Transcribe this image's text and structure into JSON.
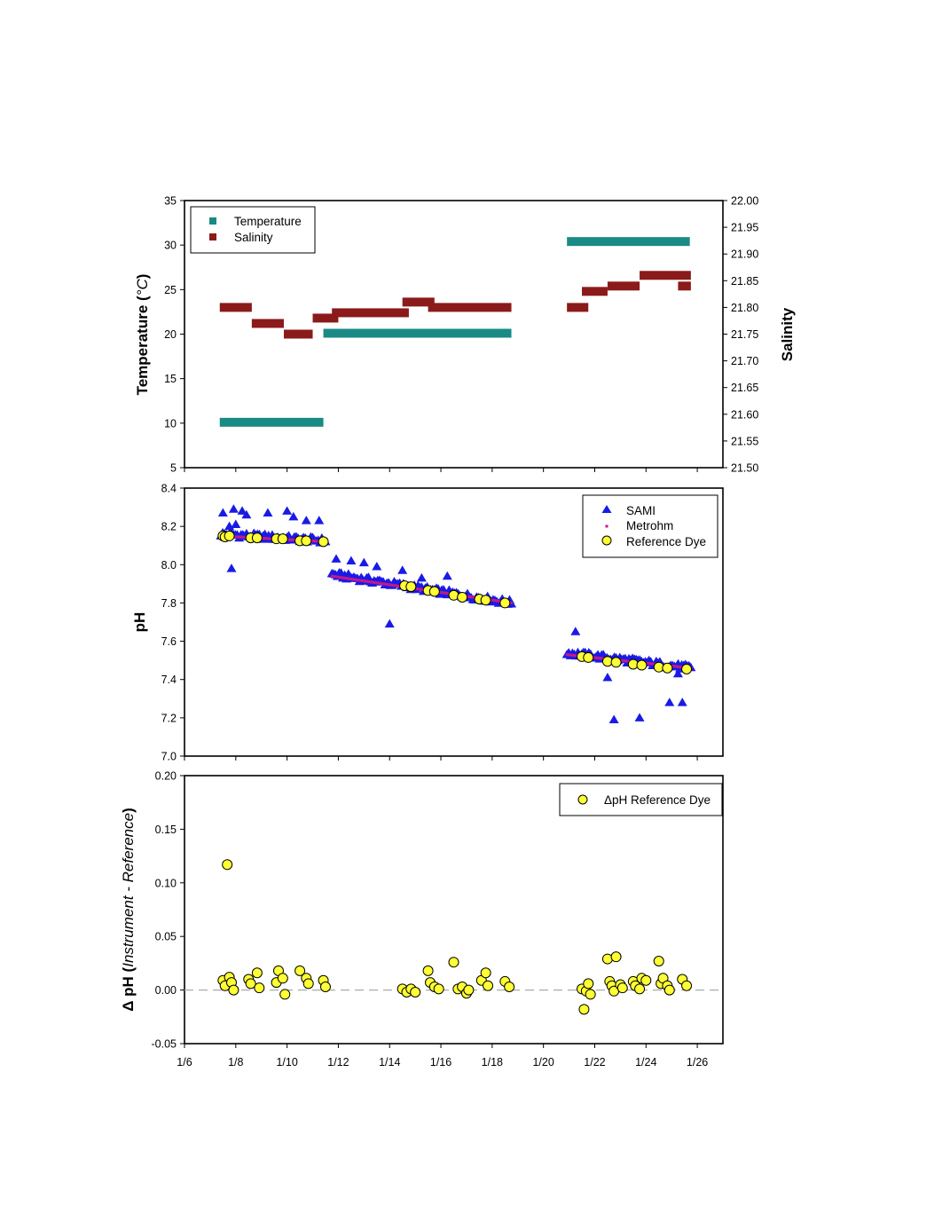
{
  "chart_data": [
    {
      "type": "scatter",
      "panel": "top",
      "ylabel": "Temperature (°C)",
      "ylabel_parts": [
        "Temperature (",
        "°C",
        ")"
      ],
      "y2label": "Salinity",
      "ylim": [
        5,
        35
      ],
      "yticks": [
        5,
        10,
        15,
        20,
        25,
        30,
        35
      ],
      "y2lim": [
        21.5,
        22.0
      ],
      "y2ticks": [
        "21.50",
        "21.55",
        "21.60",
        "21.65",
        "21.70",
        "21.75",
        "21.80",
        "21.85",
        "21.90",
        "21.95",
        "22.00"
      ],
      "xlim": [
        "1/6",
        "1/27"
      ],
      "legend_position": "top-left",
      "colors": {
        "Temperature": "#1a8a85",
        "Salinity": "#8b1a1a"
      },
      "series": [
        {
          "name": "Temperature",
          "axis": "left",
          "segments": [
            {
              "x_start": "1/7 09:00",
              "x_end": "1/11 10:00",
              "y": 10.1
            },
            {
              "x_start": "1/11 10:00",
              "x_end": "1/18 18:00",
              "y": 20.1
            },
            {
              "x_start": "1/20 22:00",
              "x_end": "1/25 17:00",
              "y": 30.4
            }
          ]
        },
        {
          "name": "Salinity",
          "axis": "right",
          "segments": [
            {
              "x_start": "1/7 09:00",
              "x_end": "1/8 15:00",
              "y": 21.8
            },
            {
              "x_start": "1/8 15:00",
              "x_end": "1/9 21:00",
              "y": 21.77
            },
            {
              "x_start": "1/9 21:00",
              "x_end": "1/11 00:00",
              "y": 21.75
            },
            {
              "x_start": "1/11 00:00",
              "x_end": "1/12 00:00",
              "y": 21.78
            },
            {
              "x_start": "1/11 18:00",
              "x_end": "1/14 18:00",
              "y": 21.79
            },
            {
              "x_start": "1/14 12:00",
              "x_end": "1/15 18:00",
              "y": 21.81
            },
            {
              "x_start": "1/15 12:00",
              "x_end": "1/18 18:00",
              "y": 21.8
            },
            {
              "x_start": "1/20 22:00",
              "x_end": "1/21 18:00",
              "y": 21.8
            },
            {
              "x_start": "1/21 12:00",
              "x_end": "1/22 12:00",
              "y": 21.83
            },
            {
              "x_start": "1/22 12:00",
              "x_end": "1/23 18:00",
              "y": 21.84
            },
            {
              "x_start": "1/23 18:00",
              "x_end": "1/25 18:00",
              "y": 21.86
            },
            {
              "x_start": "1/25 06:00",
              "x_end": "1/25 18:00",
              "y": 21.84
            }
          ]
        }
      ]
    },
    {
      "type": "scatter",
      "panel": "middle",
      "ylabel": "pH",
      "ylim": [
        7.0,
        8.4
      ],
      "yticks": [
        "7.0",
        "7.2",
        "7.4",
        "7.6",
        "7.8",
        "8.0",
        "8.2",
        "8.4"
      ],
      "xlim": [
        "1/6",
        "1/27"
      ],
      "legend_position": "top-right",
      "colors": {
        "SAMI": "#1a1ae6",
        "Metrohm": "#c0188f",
        "Reference Dye": "#ffff33"
      },
      "series": [
        {
          "name": "SAMI",
          "marker": "triangle",
          "trend_segments": [
            {
              "x_start": "1/7 10:00",
              "x_end": "1/11 12:00",
              "y_start": 8.16,
              "y_end": 8.125
            },
            {
              "x_start": "1/11 18:00",
              "x_end": "1/18 18:00",
              "y_start": 7.95,
              "y_end": 7.8
            },
            {
              "x_start": "1/20 22:00",
              "x_end": "1/25 18:00",
              "y_start": 7.54,
              "y_end": 7.46
            }
          ],
          "outliers": [
            {
              "x": "1/7 12:00",
              "y": 8.27
            },
            {
              "x": "1/7 22:00",
              "y": 8.29
            },
            {
              "x": "1/8 06:00",
              "y": 8.28
            },
            {
              "x": "1/8 10:00",
              "y": 8.26
            },
            {
              "x": "1/7 18:00",
              "y": 8.2
            },
            {
              "x": "1/8 00:00",
              "y": 8.21
            },
            {
              "x": "1/7 20:00",
              "y": 7.98
            },
            {
              "x": "1/9 06:00",
              "y": 8.27
            },
            {
              "x": "1/10 00:00",
              "y": 8.28
            },
            {
              "x": "1/10 06:00",
              "y": 8.25
            },
            {
              "x": "1/10 18:00",
              "y": 8.23
            },
            {
              "x": "1/11 06:00",
              "y": 8.23
            },
            {
              "x": "1/11 22:00",
              "y": 8.03
            },
            {
              "x": "1/12 12:00",
              "y": 8.02
            },
            {
              "x": "1/13 00:00",
              "y": 8.01
            },
            {
              "x": "1/13 12:00",
              "y": 7.99
            },
            {
              "x": "1/14 12:00",
              "y": 7.97
            },
            {
              "x": "1/15 06:00",
              "y": 7.93
            },
            {
              "x": "1/16 06:00",
              "y": 7.94
            },
            {
              "x": "1/14 00:00",
              "y": 7.69
            },
            {
              "x": "1/21 06:00",
              "y": 7.65
            },
            {
              "x": "1/22 12:00",
              "y": 7.41
            },
            {
              "x": "1/22 18:00",
              "y": 7.19
            },
            {
              "x": "1/23 18:00",
              "y": 7.2
            },
            {
              "x": "1/24 22:00",
              "y": 7.28
            },
            {
              "x": "1/25 10:00",
              "y": 7.28
            },
            {
              "x": "1/25 06:00",
              "y": 7.43
            }
          ]
        },
        {
          "name": "Metrohm",
          "marker": "dot",
          "trend_segments": [
            {
              "x_start": "1/7 10:00",
              "x_end": "1/11 12:00",
              "y_start": 8.15,
              "y_end": 8.12
            },
            {
              "x_start": "1/11 18:00",
              "x_end": "1/18 18:00",
              "y_start": 7.94,
              "y_end": 7.8
            },
            {
              "x_start": "1/20 22:00",
              "x_end": "1/25 18:00",
              "y_start": 7.53,
              "y_end": 7.46
            }
          ]
        },
        {
          "name": "Reference Dye",
          "marker": "circle",
          "points": [
            {
              "x": "1/7 12:00",
              "y": 8.15
            },
            {
              "x": "1/7 14:00",
              "y": 8.145
            },
            {
              "x": "1/7 18:00",
              "y": 8.15
            },
            {
              "x": "1/8 14:00",
              "y": 8.14
            },
            {
              "x": "1/8 20:00",
              "y": 8.14
            },
            {
              "x": "1/9 14:00",
              "y": 8.135
            },
            {
              "x": "1/9 20:00",
              "y": 8.135
            },
            {
              "x": "1/10 12:00",
              "y": 8.125
            },
            {
              "x": "1/10 18:00",
              "y": 8.125
            },
            {
              "x": "1/11 10:00",
              "y": 8.12
            },
            {
              "x": "1/14 14:00",
              "y": 7.89
            },
            {
              "x": "1/14 20:00",
              "y": 7.885
            },
            {
              "x": "1/15 12:00",
              "y": 7.865
            },
            {
              "x": "1/15 18:00",
              "y": 7.86
            },
            {
              "x": "1/16 12:00",
              "y": 7.84
            },
            {
              "x": "1/16 20:00",
              "y": 7.83
            },
            {
              "x": "1/17 12:00",
              "y": 7.82
            },
            {
              "x": "1/17 18:00",
              "y": 7.815
            },
            {
              "x": "1/18 12:00",
              "y": 7.8
            },
            {
              "x": "1/21 12:00",
              "y": 7.52
            },
            {
              "x": "1/21 18:00",
              "y": 7.515
            },
            {
              "x": "1/22 12:00",
              "y": 7.495
            },
            {
              "x": "1/22 20:00",
              "y": 7.49
            },
            {
              "x": "1/23 12:00",
              "y": 7.48
            },
            {
              "x": "1/23 20:00",
              "y": 7.475
            },
            {
              "x": "1/24 12:00",
              "y": 7.465
            },
            {
              "x": "1/24 20:00",
              "y": 7.46
            },
            {
              "x": "1/25 14:00",
              "y": 7.455
            }
          ]
        }
      ]
    },
    {
      "type": "scatter",
      "panel": "bottom",
      "ylabel": "Δ pH (Instrument - Reference)",
      "ylabel_parts": [
        "Δ pH (",
        "Instrument - Reference",
        ")"
      ],
      "ylim": [
        -0.05,
        0.2
      ],
      "yticks": [
        "-0.05",
        "0.00",
        "0.05",
        "0.10",
        "0.15",
        "0.20"
      ],
      "xlim": [
        "1/6",
        "1/27"
      ],
      "xticks": [
        "1/6",
        "1/8",
        "1/10",
        "1/12",
        "1/14",
        "1/16",
        "1/18",
        "1/20",
        "1/22",
        "1/24",
        "1/26"
      ],
      "legend_position": "top-right",
      "reference_line": 0,
      "colors": {
        "ΔpH Reference Dye": "#ffff33",
        "reference_line": "#aaaaaa"
      },
      "series": [
        {
          "name": "ΔpH Reference Dye",
          "marker": "circle",
          "points": [
            {
              "x": "1/7 12:00",
              "y": 0.009
            },
            {
              "x": "1/7 14:00",
              "y": 0.004
            },
            {
              "x": "1/7 16:00",
              "y": 0.117
            },
            {
              "x": "1/7 18:00",
              "y": 0.012
            },
            {
              "x": "1/7 20:00",
              "y": 0.007
            },
            {
              "x": "1/7 22:00",
              "y": 0.0
            },
            {
              "x": "1/8 12:00",
              "y": 0.01
            },
            {
              "x": "1/8 14:00",
              "y": 0.006
            },
            {
              "x": "1/8 20:00",
              "y": 0.016
            },
            {
              "x": "1/8 22:00",
              "y": 0.002
            },
            {
              "x": "1/9 14:00",
              "y": 0.007
            },
            {
              "x": "1/9 16:00",
              "y": 0.018
            },
            {
              "x": "1/9 20:00",
              "y": 0.011
            },
            {
              "x": "1/9 22:00",
              "y": -0.004
            },
            {
              "x": "1/10 12:00",
              "y": 0.018
            },
            {
              "x": "1/10 18:00",
              "y": 0.011
            },
            {
              "x": "1/10 20:00",
              "y": 0.006
            },
            {
              "x": "1/11 10:00",
              "y": 0.009
            },
            {
              "x": "1/11 12:00",
              "y": 0.003
            },
            {
              "x": "1/14 12:00",
              "y": 0.001
            },
            {
              "x": "1/14 16:00",
              "y": -0.002
            },
            {
              "x": "1/14 20:00",
              "y": 0.001
            },
            {
              "x": "1/15 00:00",
              "y": -0.002
            },
            {
              "x": "1/15 12:00",
              "y": 0.018
            },
            {
              "x": "1/15 14:00",
              "y": 0.007
            },
            {
              "x": "1/15 18:00",
              "y": 0.003
            },
            {
              "x": "1/15 22:00",
              "y": 0.001
            },
            {
              "x": "1/16 12:00",
              "y": 0.026
            },
            {
              "x": "1/16 16:00",
              "y": 0.001
            },
            {
              "x": "1/16 20:00",
              "y": 0.003
            },
            {
              "x": "1/17 00:00",
              "y": -0.003
            },
            {
              "x": "1/17 02:00",
              "y": 0.0
            },
            {
              "x": "1/17 14:00",
              "y": 0.009
            },
            {
              "x": "1/17 18:00",
              "y": 0.016
            },
            {
              "x": "1/17 20:00",
              "y": 0.004
            },
            {
              "x": "1/18 12:00",
              "y": 0.008
            },
            {
              "x": "1/18 16:00",
              "y": 0.003
            },
            {
              "x": "1/21 12:00",
              "y": 0.001
            },
            {
              "x": "1/21 14:00",
              "y": -0.018
            },
            {
              "x": "1/21 16:00",
              "y": -0.001
            },
            {
              "x": "1/21 18:00",
              "y": 0.006
            },
            {
              "x": "1/21 20:00",
              "y": -0.004
            },
            {
              "x": "1/22 12:00",
              "y": 0.029
            },
            {
              "x": "1/22 14:00",
              "y": 0.008
            },
            {
              "x": "1/22 16:00",
              "y": 0.004
            },
            {
              "x": "1/22 18:00",
              "y": -0.001
            },
            {
              "x": "1/22 20:00",
              "y": 0.031
            },
            {
              "x": "1/23 00:00",
              "y": 0.005
            },
            {
              "x": "1/23 02:00",
              "y": 0.002
            },
            {
              "x": "1/23 12:00",
              "y": 0.008
            },
            {
              "x": "1/23 14:00",
              "y": 0.004
            },
            {
              "x": "1/23 18:00",
              "y": 0.001
            },
            {
              "x": "1/23 20:00",
              "y": 0.011
            },
            {
              "x": "1/24 00:00",
              "y": 0.009
            },
            {
              "x": "1/24 12:00",
              "y": 0.027
            },
            {
              "x": "1/24 14:00",
              "y": 0.006
            },
            {
              "x": "1/24 16:00",
              "y": 0.011
            },
            {
              "x": "1/24 20:00",
              "y": 0.004
            },
            {
              "x": "1/24 22:00",
              "y": 0.0
            },
            {
              "x": "1/25 10:00",
              "y": 0.01
            },
            {
              "x": "1/25 14:00",
              "y": 0.004
            }
          ]
        }
      ]
    }
  ]
}
